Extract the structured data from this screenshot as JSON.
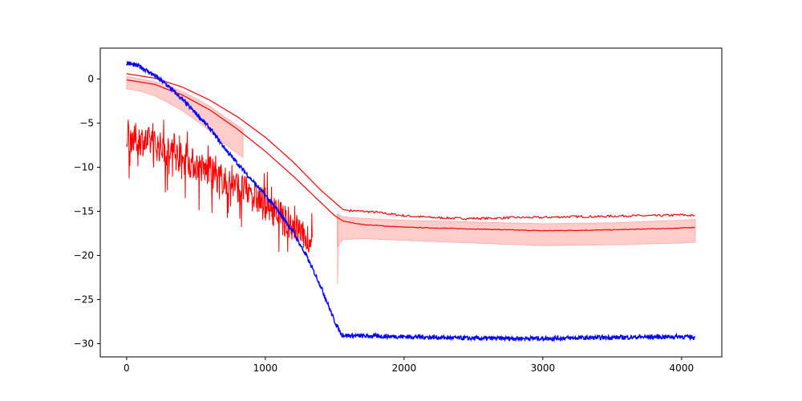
{
  "chart_data": {
    "type": "line",
    "title": "",
    "xlabel": "",
    "ylabel": "",
    "xlim": [
      -190,
      4290
    ],
    "ylim": [
      -31.5,
      3.5
    ],
    "xticks": [
      0,
      1000,
      2000,
      3000,
      4000
    ],
    "xtick_labels": [
      "0",
      "1000",
      "2000",
      "3000",
      "4000"
    ],
    "yticks": [
      0,
      -5,
      -10,
      -15,
      -20,
      -25,
      -30
    ],
    "ytick_labels": [
      "0",
      "−5",
      "−10",
      "−15",
      "−20",
      "−25",
      "−30"
    ],
    "grid": false,
    "legend": "none",
    "series": [
      {
        "style": "upper-red-line",
        "color": "#ff0000",
        "points": [
          [
            0,
            0.6
          ],
          [
            200,
            0.1
          ],
          [
            400,
            -0.9
          ],
          [
            600,
            -2.4
          ],
          [
            800,
            -4.3
          ],
          [
            1000,
            -6.6
          ],
          [
            1200,
            -9.4
          ],
          [
            1400,
            -12.6
          ],
          [
            1560,
            -14.8
          ],
          [
            1600,
            -14.9
          ],
          [
            1800,
            -15.1
          ],
          [
            2000,
            -15.5
          ],
          [
            2200,
            -15.7
          ],
          [
            2400,
            -15.8
          ],
          [
            2600,
            -15.8
          ],
          [
            2800,
            -15.7
          ],
          [
            3000,
            -15.7
          ],
          [
            3200,
            -15.6
          ],
          [
            3400,
            -15.6
          ],
          [
            3600,
            -15.5
          ],
          [
            3800,
            -15.5
          ],
          [
            4000,
            -15.4
          ],
          [
            4100,
            -15.5
          ]
        ]
      },
      {
        "style": "mean-red-line",
        "color": "#ff0000",
        "points": [
          [
            0,
            -0.1
          ],
          [
            200,
            -0.6
          ],
          [
            400,
            -1.8
          ],
          [
            600,
            -3.5
          ],
          [
            800,
            -5.7
          ],
          [
            1000,
            -8.2
          ],
          [
            1200,
            -11.0
          ],
          [
            1400,
            -14.0
          ],
          [
            1500,
            -15.5
          ],
          [
            1560,
            -16.1
          ],
          [
            1700,
            -16.5
          ],
          [
            2000,
            -16.8
          ],
          [
            2500,
            -17.0
          ],
          [
            3000,
            -17.2
          ],
          [
            3500,
            -17.1
          ],
          [
            4000,
            -16.9
          ],
          [
            4100,
            -16.8
          ]
        ]
      },
      {
        "style": "red-shaded-band",
        "color": "#ff0000",
        "segments": [
          {
            "x": [
              0,
              100,
              200,
              300,
              400,
              500,
              600,
              700,
              840
            ],
            "upper": [
              0.3,
              0.0,
              -0.3,
              -0.8,
              -1.4,
              -2.2,
              -3.1,
              -4.2,
              -5.7
            ],
            "lower": [
              -1.1,
              -1.4,
              -1.9,
              -2.7,
              -3.6,
              -4.7,
              -5.9,
              -7.3,
              -8.9
            ]
          },
          {
            "x": [
              1520,
              1560,
              1700,
              2000,
              2500,
              3000,
              3500,
              4000,
              4100
            ],
            "upper": [
              -15.3,
              -15.6,
              -15.8,
              -16.0,
              -16.2,
              -16.4,
              -16.3,
              -16.0,
              -15.9
            ],
            "lower": [
              -19.0,
              -18.2,
              -18.1,
              -18.3,
              -18.6,
              -18.9,
              -18.8,
              -18.6,
              -18.5
            ]
          }
        ]
      },
      {
        "style": "noisy-red-line",
        "color": "#ff0000",
        "x_range": [
          0,
          1340
        ],
        "trend": [
          [
            0,
            -6.4
          ],
          [
            200,
            -7.4
          ],
          [
            400,
            -9.0
          ],
          [
            600,
            -10.6
          ],
          [
            800,
            -12.2
          ],
          [
            1000,
            -14.2
          ],
          [
            1200,
            -16.6
          ],
          [
            1340,
            -18.4
          ]
        ],
        "noise_amplitude": 1.8,
        "min": -19.6,
        "max": -4.6
      },
      {
        "style": "blue-line",
        "color": "#0000ff",
        "points": [
          [
            0,
            1.8
          ],
          [
            100,
            1.4
          ],
          [
            200,
            0.4
          ],
          [
            300,
            -0.8
          ],
          [
            400,
            -2.3
          ],
          [
            500,
            -3.9
          ],
          [
            600,
            -5.6
          ],
          [
            700,
            -7.7
          ],
          [
            800,
            -9.6
          ],
          [
            900,
            -11.4
          ],
          [
            1000,
            -13.2
          ],
          [
            1100,
            -15.1
          ],
          [
            1200,
            -17.3
          ],
          [
            1300,
            -20.2
          ],
          [
            1400,
            -23.5
          ],
          [
            1500,
            -27.5
          ],
          [
            1550,
            -29.0
          ],
          [
            1600,
            -29.1
          ],
          [
            2000,
            -29.2
          ],
          [
            2500,
            -29.4
          ],
          [
            3000,
            -29.4
          ],
          [
            3500,
            -29.3
          ],
          [
            4000,
            -29.2
          ],
          [
            4100,
            -29.3
          ]
        ],
        "noise_amplitude": 0.25
      }
    ]
  }
}
